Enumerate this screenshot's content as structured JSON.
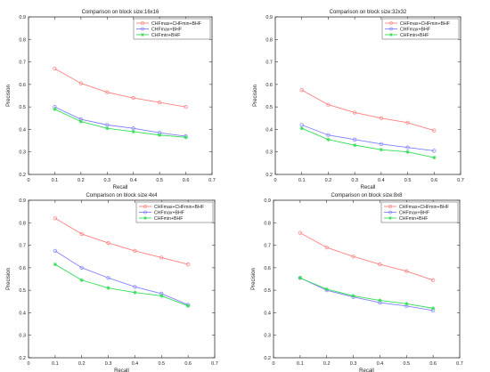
{
  "chart_data": [
    {
      "type": "line",
      "title": "Comparison on block size:16x16",
      "xlabel": "Recall",
      "ylabel": "Precision",
      "xlim": [
        0,
        0.7
      ],
      "ylim": [
        0.2,
        0.9
      ],
      "xticks": [
        "0",
        "0.1",
        "0.2",
        "0.3",
        "0.4",
        "0.5",
        "0.6",
        "0.7"
      ],
      "yticks": [
        "0.2",
        "0.3",
        "0.4",
        "0.5",
        "0.6",
        "0.7",
        "0.8",
        "0.9"
      ],
      "legend_position": "top-right",
      "grid": false,
      "x": [
        0.1,
        0.2,
        0.3,
        0.4,
        0.5,
        0.6
      ],
      "series": [
        {
          "name": "CHFmax+CHFmin+BHF",
          "color": "#ff8080",
          "marker": "circle",
          "values": [
            0.67,
            0.605,
            0.565,
            0.54,
            0.52,
            0.5
          ]
        },
        {
          "name": "CHFmax+BHF",
          "color": "#8080ff",
          "marker": "circle",
          "values": [
            0.5,
            0.445,
            0.42,
            0.405,
            0.385,
            0.37
          ]
        },
        {
          "name": "CHFmin+BHF",
          "color": "#33dd55",
          "marker": "star",
          "values": [
            0.49,
            0.435,
            0.405,
            0.39,
            0.375,
            0.365
          ]
        }
      ]
    },
    {
      "type": "line",
      "title": "Comparison on block size:32x32",
      "xlabel": "Recall",
      "ylabel": "Precision",
      "xlim": [
        0,
        0.7
      ],
      "ylim": [
        0.2,
        0.9
      ],
      "xticks": [
        "0",
        "0.1",
        "0.2",
        "0.3",
        "0.4",
        "0.5",
        "0.6",
        "0.7"
      ],
      "yticks": [
        "0.2",
        "0.3",
        "0.4",
        "0.5",
        "0.6",
        "0.7",
        "0.8",
        "0.9"
      ],
      "legend_position": "top-right",
      "grid": false,
      "x": [
        0.1,
        0.2,
        0.3,
        0.4,
        0.5,
        0.6
      ],
      "series": [
        {
          "name": "CHFmax+CHFmin+BHF",
          "color": "#ff8080",
          "marker": "circle",
          "values": [
            0.575,
            0.51,
            0.475,
            0.45,
            0.43,
            0.395
          ]
        },
        {
          "name": "CHFmax+BHF",
          "color": "#8080ff",
          "marker": "circle",
          "values": [
            0.42,
            0.375,
            0.355,
            0.335,
            0.32,
            0.305
          ]
        },
        {
          "name": "CHFmin+BHF",
          "color": "#33dd55",
          "marker": "star",
          "values": [
            0.405,
            0.355,
            0.33,
            0.31,
            0.3,
            0.275
          ]
        }
      ]
    },
    {
      "type": "line",
      "title": "Comparison on block size:4x4",
      "xlabel": "Recall",
      "ylabel": "Precision",
      "xlim": [
        0,
        0.7
      ],
      "ylim": [
        0.2,
        0.9
      ],
      "xticks": [
        "0",
        "0.1",
        "0.2",
        "0.3",
        "0.4",
        "0.5",
        "0.6",
        "0.7"
      ],
      "yticks": [
        "0.2",
        "0.3",
        "0.4",
        "0.5",
        "0.6",
        "0.7",
        "0.8",
        "0.9"
      ],
      "legend_position": "top-right",
      "grid": false,
      "x": [
        0.1,
        0.2,
        0.3,
        0.4,
        0.5,
        0.6
      ],
      "series": [
        {
          "name": "CHFmax+CHFmin+BHF",
          "color": "#ff8080",
          "marker": "circle",
          "values": [
            0.82,
            0.75,
            0.71,
            0.675,
            0.645,
            0.615
          ]
        },
        {
          "name": "CHFmax+BHF",
          "color": "#8080ff",
          "marker": "circle",
          "values": [
            0.675,
            0.6,
            0.555,
            0.515,
            0.485,
            0.435
          ]
        },
        {
          "name": "CHFmin+BHF",
          "color": "#33dd55",
          "marker": "star",
          "values": [
            0.615,
            0.545,
            0.51,
            0.49,
            0.475,
            0.43
          ]
        }
      ]
    },
    {
      "type": "line",
      "title": "Comparison on block size:8x8",
      "xlabel": "Recall",
      "ylabel": "Precision",
      "xlim": [
        0,
        0.7
      ],
      "ylim": [
        0.2,
        0.9
      ],
      "xticks": [
        "0",
        "0.1",
        "0.2",
        "0.3",
        "0.4",
        "0.5",
        "0.6",
        "0.7"
      ],
      "yticks": [
        "0.2",
        "0.3",
        "0.4",
        "0.5",
        "0.6",
        "0.7",
        "0.8",
        "0.9"
      ],
      "legend_position": "top-right",
      "grid": false,
      "x": [
        0.1,
        0.2,
        0.3,
        0.4,
        0.5,
        0.6
      ],
      "series": [
        {
          "name": "CHFmax+CHFmin+BHF",
          "color": "#ff8080",
          "marker": "circle",
          "values": [
            0.755,
            0.69,
            0.65,
            0.615,
            0.585,
            0.545
          ]
        },
        {
          "name": "CHFmax+BHF",
          "color": "#8080ff",
          "marker": "circle",
          "values": [
            0.555,
            0.5,
            0.47,
            0.445,
            0.43,
            0.41
          ]
        },
        {
          "name": "CHFmin+BHF",
          "color": "#33dd55",
          "marker": "star",
          "values": [
            0.555,
            0.505,
            0.475,
            0.455,
            0.44,
            0.42
          ]
        }
      ]
    }
  ]
}
